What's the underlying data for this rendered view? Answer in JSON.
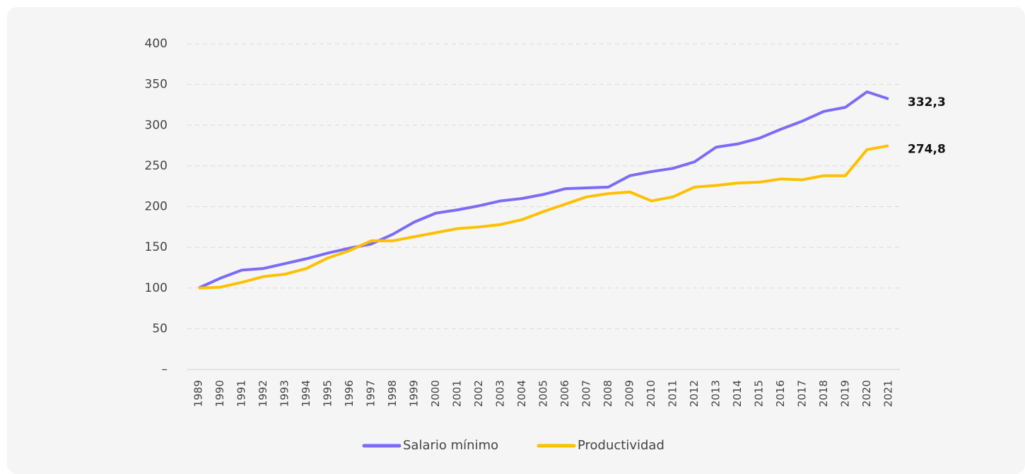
{
  "chart_data": {
    "type": "line",
    "categories": [
      "1989",
      "1990",
      "1991",
      "1992",
      "1993",
      "1994",
      "1995",
      "1996",
      "1997",
      "1998",
      "1999",
      "2000",
      "2001",
      "2002",
      "2003",
      "2004",
      "2005",
      "2006",
      "2007",
      "2008",
      "2009",
      "2010",
      "2011",
      "2012",
      "2013",
      "2014",
      "2015",
      "2016",
      "2017",
      "2018",
      "2019",
      "2020",
      "2021"
    ],
    "series": [
      {
        "name": "Salario mínimo",
        "color": "#7b6cf6",
        "values": [
          100,
          112,
          122,
          124,
          130,
          136,
          143,
          149,
          154,
          166,
          181,
          192,
          196,
          201,
          207,
          210,
          215,
          222,
          223,
          224,
          238,
          243,
          247,
          255,
          273,
          277,
          284,
          295,
          305,
          317,
          322,
          341,
          332.3
        ],
        "value_labels": [
          null,
          null,
          null,
          null,
          null,
          null,
          null,
          null,
          null,
          null,
          null,
          null,
          null,
          null,
          null,
          null,
          null,
          null,
          null,
          null,
          null,
          null,
          null,
          null,
          null,
          null,
          null,
          null,
          null,
          null,
          null,
          null,
          "332,3"
        ]
      },
      {
        "name": "Productividad",
        "color": "#ffc000",
        "values": [
          100,
          101,
          107,
          114,
          117,
          124,
          137,
          146,
          158,
          158,
          163,
          168,
          173,
          175,
          178,
          184,
          194,
          203,
          212,
          216,
          218,
          207,
          212,
          224,
          226,
          229,
          230,
          234,
          233,
          238,
          238,
          270,
          274.8
        ],
        "value_labels": [
          null,
          null,
          null,
          null,
          null,
          null,
          null,
          null,
          null,
          null,
          null,
          null,
          null,
          null,
          null,
          null,
          null,
          null,
          null,
          null,
          null,
          null,
          null,
          null,
          null,
          null,
          null,
          null,
          null,
          null,
          null,
          null,
          "274,8"
        ]
      }
    ],
    "ylim": [
      0,
      400
    ],
    "yticks": [
      {
        "value": 0,
        "label": "–"
      },
      50,
      100,
      150,
      200,
      250,
      300,
      350,
      400
    ],
    "grid": true,
    "legend": "bottom"
  }
}
